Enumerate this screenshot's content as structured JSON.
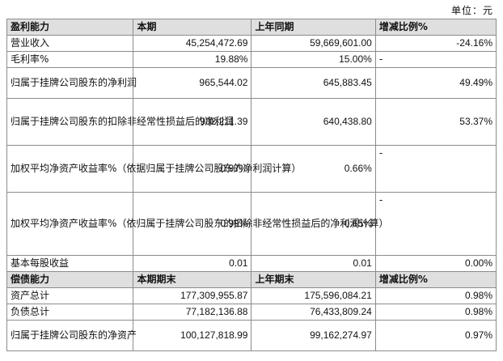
{
  "unit_label": "单位：元",
  "profit_section": {
    "headers": [
      "盈利能力",
      "本期",
      "上年同期",
      "增减比例%"
    ],
    "rows": [
      {
        "label": "营业收入",
        "current": "45,254,472.69",
        "previous": "59,669,601.00",
        "change": "-24.16%"
      },
      {
        "label": "毛利率%",
        "current": "19.88%",
        "previous": "15.00%",
        "change": "-"
      },
      {
        "label": "归属于挂牌公司股东的净利润",
        "current": "965,544.02",
        "previous": "645,883.45",
        "change": "49.49%"
      },
      {
        "label": "归属于挂牌公司股东的扣除非经常性损益后的净利润",
        "current": "982,211.39",
        "previous": "640,438.80",
        "change": "53.37%"
      },
      {
        "label": "加权平均净资产收益率%（依据归属于挂牌公司股东的净利润计算）",
        "current": "0.97%",
        "previous": "0.66%",
        "change": "-"
      },
      {
        "label": "加权平均净资产收益率%（依归属于挂牌公司股东的扣除非经常性损益后的净利润计算）",
        "current": "0.99%",
        "previous": "0.65%",
        "change": "-"
      },
      {
        "label": "基本每股收益",
        "current": "0.01",
        "previous": "0.01",
        "change": "0.00%"
      }
    ]
  },
  "debt_section": {
    "headers": [
      "偿债能力",
      "本期期末",
      "上年期末",
      "增减比例%"
    ],
    "rows": [
      {
        "label": "资产总计",
        "current": "177,309,955.87",
        "previous": "175,596,084.21",
        "change": "0.98%"
      },
      {
        "label": "负债总计",
        "current": "77,182,136.88",
        "previous": "76,433,809.24",
        "change": "0.98%"
      },
      {
        "label": "归属于挂牌公司股东的净资产",
        "current": "100,127,818.99",
        "previous": "99,162,274.97",
        "change": "0.97%"
      }
    ]
  }
}
